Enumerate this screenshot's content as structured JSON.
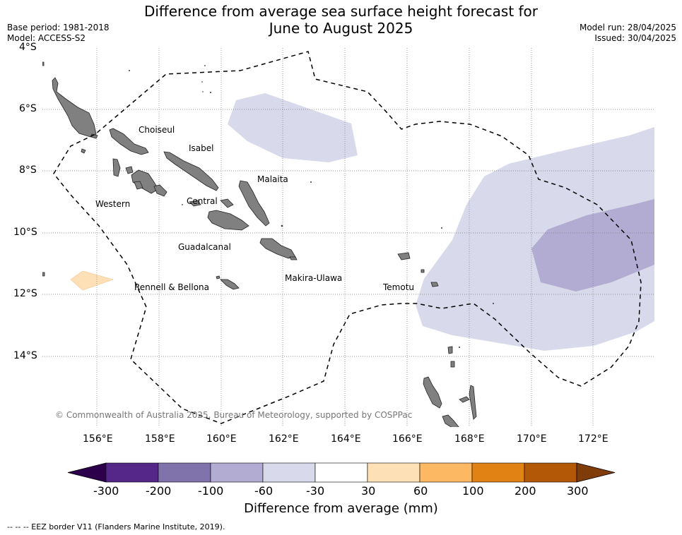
{
  "header": {
    "title_line1": "Difference from average sea surface height forecast for",
    "title_line2": "June to August 2025",
    "base_period": "Base period: 1981-2018",
    "model": "Model: ACCESS-S2",
    "model_run": "Model run: 28/04/2025",
    "issued": "Issued: 30/04/2025"
  },
  "map": {
    "lat_labels": [
      "4°S",
      "6°S",
      "8°S",
      "10°S",
      "12°S",
      "14°S"
    ],
    "lon_labels": [
      "156°E",
      "158°E",
      "160°E",
      "162°E",
      "164°E",
      "166°E",
      "168°E",
      "170°E",
      "172°E"
    ],
    "province_labels": [
      "Choiseul",
      "Isabel",
      "Malaita",
      "Western",
      "Central",
      "Guadalcanal",
      "Rennell & Bellona",
      "Makira-Ulawa",
      "Temotu"
    ],
    "copyright": "© Commonwealth of Australia 2025, Bureau of Meteorology, supported by COSPPac",
    "land_color": "#808080",
    "eez_line_color": "#000000"
  },
  "colorbar": {
    "title": "Difference from average (mm)",
    "tick_labels": [
      "-300",
      "-200",
      "-100",
      "-60",
      "-30",
      "30",
      "60",
      "100",
      "200",
      "300"
    ],
    "colors": [
      "#2d004b",
      "#542788",
      "#8073ac",
      "#b2abd2",
      "#d8daeb",
      "#ffffff",
      "#fee0b6",
      "#fdb863",
      "#e08214",
      "#b35806",
      "#7f3b08"
    ]
  },
  "footer": {
    "legend_text": "--  --  -- EEZ border V11 (Flanders Marine Institute, 2019)."
  }
}
